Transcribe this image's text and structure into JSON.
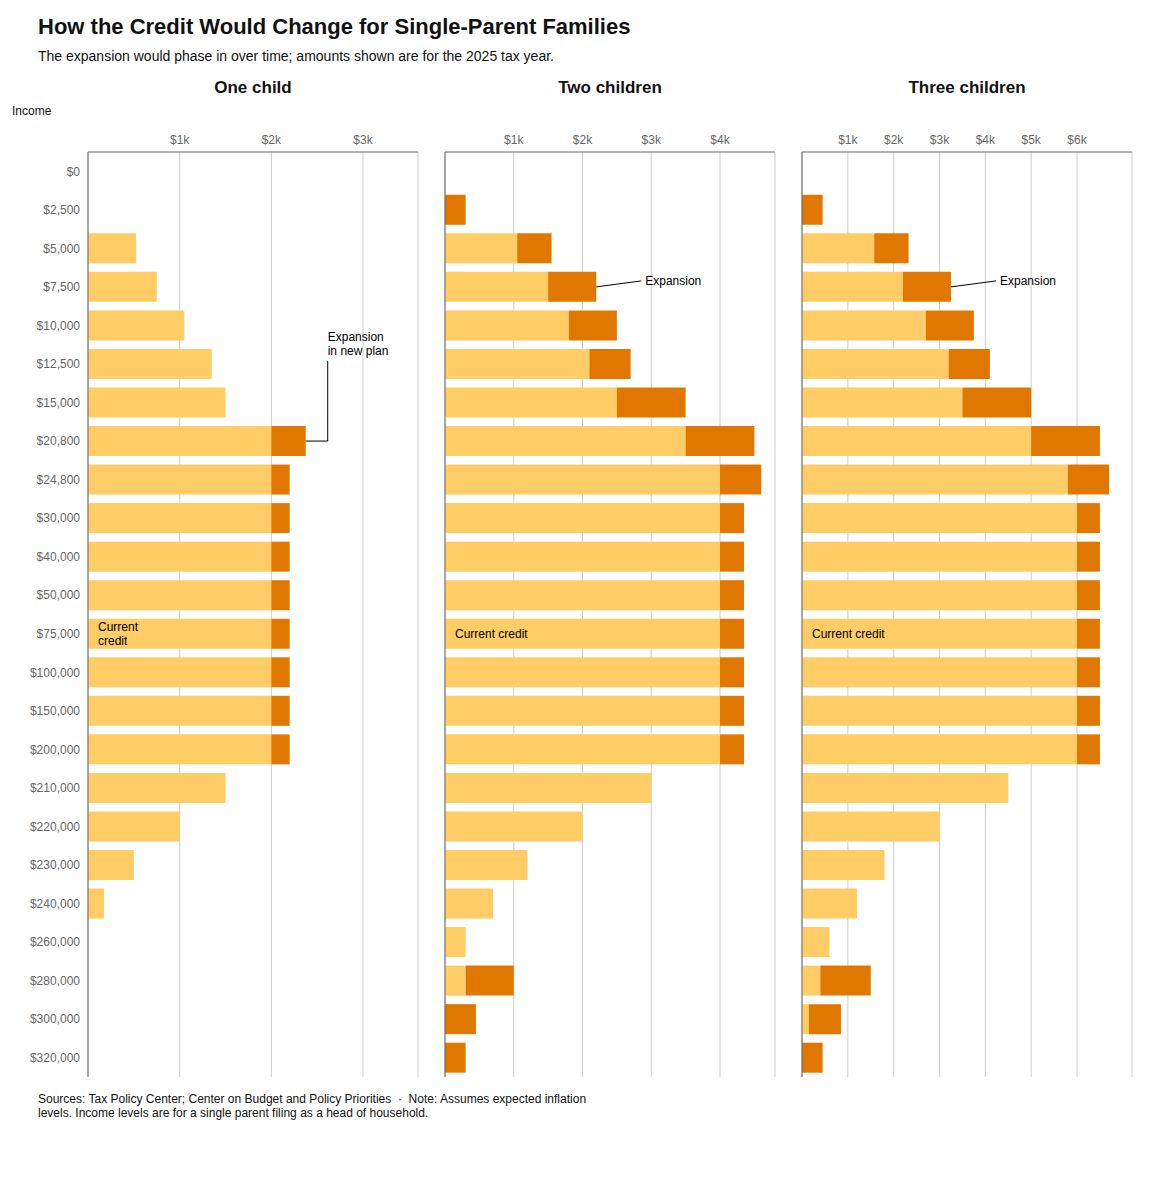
{
  "title": "How the Credit Would Change for Single-Parent Families",
  "subtitle": "The expansion would phase in over time; amounts shown are for the 2025 tax year.",
  "footer": "Sources: Tax Policy Center; Center on Budget and Policy Priorities  ·  Note: Assumes expected inflation\nlevels. Income levels are for a single parent filing as a head of household.",
  "chart_data": [
    {
      "type": "bar",
      "orientation": "horizontal",
      "stacked": true,
      "grid": true,
      "title": "One child",
      "y_label": "Income",
      "categories": [
        "$0",
        "$2,500",
        "$5,000",
        "$7,500",
        "$10,000",
        "$12,500",
        "$15,000",
        "$20,800",
        "$24,800",
        "$30,000",
        "$40,000",
        "$50,000",
        "$75,000",
        "$100,000",
        "$150,000",
        "$200,000",
        "$210,000",
        "$220,000",
        "$230,000",
        "$240,000",
        "$260,000",
        "$280,000",
        "$300,000",
        "$320,000"
      ],
      "xlim": [
        0,
        3600
      ],
      "xticks": [
        {
          "value": 1000,
          "label": "$1k"
        },
        {
          "value": 2000,
          "label": "$2k"
        },
        {
          "value": 3000,
          "label": "$3k"
        }
      ],
      "series": [
        {
          "name": "Current\ncredit",
          "color": "#FFCC66",
          "values": [
            0,
            0,
            525,
            750,
            1050,
            1350,
            1500,
            2000,
            2000,
            2000,
            2000,
            2000,
            2000,
            2000,
            2000,
            2000,
            1500,
            1000,
            500,
            175,
            0,
            0,
            0,
            0
          ]
        },
        {
          "name": "Expansion\nin new plan",
          "color": "#E07800",
          "values": [
            0,
            0,
            0,
            0,
            0,
            0,
            0,
            375,
            200,
            200,
            200,
            200,
            200,
            200,
            200,
            200,
            0,
            0,
            0,
            0,
            0,
            0,
            0,
            0
          ]
        }
      ],
      "annotations": [
        {
          "text": "Current\ncredit",
          "category": "$75,000"
        },
        {
          "text": "Expansion\nin new plan",
          "category": "$20,800"
        }
      ]
    },
    {
      "type": "bar",
      "orientation": "horizontal",
      "stacked": true,
      "grid": true,
      "tick_labels": "x",
      "title": "Two children",
      "categories": [
        "$0",
        "$2,500",
        "$5,000",
        "$7,500",
        "$10,000",
        "$12,500",
        "$15,000",
        "$20,800",
        "$24,800",
        "$30,000",
        "$40,000",
        "$50,000",
        "$75,000",
        "$100,000",
        "$150,000",
        "$200,000",
        "$210,000",
        "$220,000",
        "$230,000",
        "$240,000",
        "$260,000",
        "$280,000",
        "$300,000",
        "$320,000"
      ],
      "xlim": [
        0,
        4800
      ],
      "xticks": [
        {
          "value": 1000,
          "label": "$1k"
        },
        {
          "value": 2000,
          "label": "$2k"
        },
        {
          "value": 3000,
          "label": "$3k"
        },
        {
          "value": 4000,
          "label": "$4k"
        }
      ],
      "series": [
        {
          "name": "Current credit",
          "color": "#FFCC66",
          "values": [
            0,
            0,
            1050,
            1500,
            1800,
            2100,
            2500,
            3500,
            4000,
            4000,
            4000,
            4000,
            4000,
            4000,
            4000,
            4000,
            3000,
            2000,
            1200,
            700,
            300,
            300,
            0,
            0
          ]
        },
        {
          "name": "Expansion",
          "color": "#E07800",
          "values": [
            0,
            300,
            500,
            700,
            700,
            600,
            1000,
            1000,
            600,
            350,
            350,
            350,
            350,
            350,
            350,
            350,
            0,
            0,
            0,
            0,
            0,
            700,
            450,
            300
          ]
        }
      ],
      "annotations": [
        {
          "text": "Current credit",
          "category": "$75,000"
        },
        {
          "text": "Expansion",
          "category": "$7,500"
        }
      ]
    },
    {
      "type": "bar",
      "orientation": "horizontal",
      "stacked": true,
      "grid": true,
      "tick_labels": "x",
      "title": "Three children",
      "categories": [
        "$0",
        "$2,500",
        "$5,000",
        "$7,500",
        "$10,000",
        "$12,500",
        "$15,000",
        "$20,800",
        "$24,800",
        "$30,000",
        "$40,000",
        "$50,000",
        "$75,000",
        "$100,000",
        "$150,000",
        "$200,000",
        "$210,000",
        "$220,000",
        "$230,000",
        "$240,000",
        "$260,000",
        "$280,000",
        "$300,000",
        "$320,000"
      ],
      "xlim": [
        0,
        7200
      ],
      "xticks": [
        {
          "value": 1000,
          "label": "$1k"
        },
        {
          "value": 2000,
          "label": "$2k"
        },
        {
          "value": 3000,
          "label": "$3k"
        },
        {
          "value": 4000,
          "label": "$4k"
        },
        {
          "value": 5000,
          "label": "$5k"
        },
        {
          "value": 6000,
          "label": "$6k"
        }
      ],
      "series": [
        {
          "name": "Current credit",
          "color": "#FFCC66",
          "values": [
            0,
            0,
            1575,
            2200,
            2700,
            3200,
            3500,
            5000,
            5800,
            6000,
            6000,
            6000,
            6000,
            6000,
            6000,
            6000,
            4500,
            3000,
            1800,
            1200,
            600,
            400,
            150,
            0
          ]
        },
        {
          "name": "Expansion",
          "color": "#E07800",
          "values": [
            0,
            450,
            750,
            1050,
            1050,
            900,
            1500,
            1500,
            900,
            500,
            500,
            500,
            500,
            500,
            500,
            500,
            0,
            0,
            0,
            0,
            0,
            1100,
            700,
            450
          ]
        }
      ],
      "annotations": [
        {
          "text": "Current credit",
          "category": "$75,000"
        },
        {
          "text": "Expansion",
          "category": "$7,500"
        }
      ]
    }
  ]
}
